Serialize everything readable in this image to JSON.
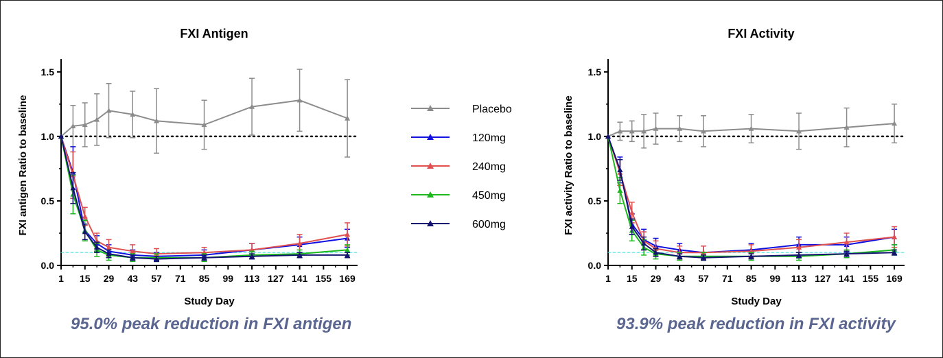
{
  "colors": {
    "placebo": "#8c8c8c",
    "120mg": "#1010e0",
    "240mg": "#e05050",
    "450mg": "#1cb81c",
    "600mg": "#141470",
    "reference_dotted": "#000000",
    "reference_dashed": "#40e0e0",
    "caption": "#5a6590"
  },
  "legend": {
    "entries": [
      {
        "key": "placebo",
        "label": "Placebo"
      },
      {
        "key": "120mg",
        "label": "120mg"
      },
      {
        "key": "240mg",
        "label": "240mg"
      },
      {
        "key": "450mg",
        "label": "450mg"
      },
      {
        "key": "600mg",
        "label": "600mg"
      }
    ]
  },
  "captions": {
    "left": "95.0% peak reduction in FXI antigen",
    "right": "93.9% peak reduction in FXI activity"
  },
  "chart_data": [
    {
      "type": "line",
      "title": "FXI Antigen",
      "xlabel": "Study Day",
      "ylabel": "FXI antigen Ratio to baseline",
      "xlim": [
        1,
        175
      ],
      "ylim": [
        0,
        1.6
      ],
      "xticks": [
        1,
        15,
        29,
        43,
        57,
        71,
        85,
        99,
        113,
        127,
        141,
        155,
        169
      ],
      "yticks": [
        0.0,
        0.5,
        1.0,
        1.5
      ],
      "ytick_labels": [
        "0.0",
        "0.5",
        "1.0",
        "1.5"
      ],
      "reference_lines": [
        {
          "y": 1.0,
          "style": "dotted",
          "color_key": "reference_dotted"
        },
        {
          "y": 0.1,
          "style": "dashed",
          "color_key": "reference_dashed"
        }
      ],
      "series": [
        {
          "name": "Placebo",
          "key": "placebo",
          "x": [
            1,
            8,
            15,
            22,
            29,
            43,
            57,
            85,
            113,
            141,
            169
          ],
          "y": [
            1.0,
            1.08,
            1.09,
            1.13,
            1.2,
            1.17,
            1.12,
            1.09,
            1.23,
            1.28,
            1.14
          ],
          "err": [
            0,
            0.16,
            0.17,
            0.2,
            0.21,
            0.18,
            0.25,
            0.19,
            0.22,
            0.24,
            0.3
          ]
        },
        {
          "name": "120mg",
          "key": "120mg",
          "x": [
            1,
            8,
            15,
            22,
            29,
            43,
            57,
            85,
            113,
            141,
            169
          ],
          "y": [
            1.0,
            0.72,
            0.27,
            0.17,
            0.11,
            0.08,
            0.07,
            0.08,
            0.12,
            0.16,
            0.21
          ],
          "err": [
            0,
            0.2,
            0.08,
            0.06,
            0.05,
            0.04,
            0.03,
            0.04,
            0.05,
            0.06,
            0.07
          ]
        },
        {
          "name": "240mg",
          "key": "240mg",
          "x": [
            1,
            8,
            15,
            22,
            29,
            43,
            57,
            85,
            113,
            141,
            169
          ],
          "y": [
            1.0,
            0.7,
            0.38,
            0.19,
            0.14,
            0.11,
            0.09,
            0.1,
            0.12,
            0.17,
            0.24
          ],
          "err": [
            0,
            0.18,
            0.07,
            0.06,
            0.06,
            0.05,
            0.04,
            0.04,
            0.05,
            0.07,
            0.09
          ]
        },
        {
          "name": "450mg",
          "key": "450mg",
          "x": [
            1,
            8,
            15,
            22,
            29,
            43,
            57,
            85,
            113,
            141,
            169
          ],
          "y": [
            1.0,
            0.55,
            0.27,
            0.12,
            0.08,
            0.06,
            0.06,
            0.06,
            0.08,
            0.09,
            0.12
          ],
          "err": [
            0,
            0.15,
            0.08,
            0.05,
            0.04,
            0.03,
            0.03,
            0.03,
            0.03,
            0.03,
            0.04
          ]
        },
        {
          "name": "600mg",
          "key": "600mg",
          "x": [
            1,
            8,
            15,
            22,
            29,
            43,
            57,
            85,
            113,
            141,
            169
          ],
          "y": [
            1.0,
            0.6,
            0.26,
            0.14,
            0.09,
            0.06,
            0.05,
            0.06,
            0.07,
            0.08,
            0.08
          ],
          "err": [
            0,
            0.12,
            0.06,
            0.04,
            0.03,
            0.02,
            0.02,
            0.02,
            0.02,
            0.02,
            0.02
          ]
        }
      ]
    },
    {
      "type": "line",
      "title": "FXI Activity",
      "xlabel": "Study Day",
      "ylabel": "FXI activity Ratio to baseline",
      "xlim": [
        1,
        175
      ],
      "ylim": [
        0,
        1.6
      ],
      "xticks": [
        1,
        15,
        29,
        43,
        57,
        71,
        85,
        99,
        113,
        127,
        141,
        155,
        169
      ],
      "yticks": [
        0.0,
        0.5,
        1.0,
        1.5
      ],
      "ytick_labels": [
        "0.0",
        "0.5",
        "1.0",
        "1.5"
      ],
      "reference_lines": [
        {
          "y": 1.0,
          "style": "dotted",
          "color_key": "reference_dotted"
        },
        {
          "y": 0.1,
          "style": "dashed",
          "color_key": "reference_dashed"
        }
      ],
      "series": [
        {
          "name": "Placebo",
          "key": "placebo",
          "x": [
            1,
            8,
            15,
            22,
            29,
            43,
            57,
            85,
            113,
            141,
            169
          ],
          "y": [
            1.0,
            1.04,
            1.04,
            1.04,
            1.06,
            1.06,
            1.04,
            1.06,
            1.04,
            1.07,
            1.1
          ],
          "err": [
            0,
            0.07,
            0.08,
            0.13,
            0.12,
            0.1,
            0.12,
            0.11,
            0.14,
            0.15,
            0.15
          ]
        },
        {
          "name": "120mg",
          "key": "120mg",
          "x": [
            1,
            8,
            15,
            22,
            29,
            43,
            57,
            85,
            113,
            141,
            169
          ],
          "y": [
            1.0,
            0.74,
            0.32,
            0.2,
            0.15,
            0.12,
            0.1,
            0.12,
            0.16,
            0.16,
            0.22
          ],
          "err": [
            0,
            0.1,
            0.08,
            0.08,
            0.06,
            0.05,
            0.05,
            0.05,
            0.06,
            0.06,
            0.06
          ]
        },
        {
          "name": "240mg",
          "key": "240mg",
          "x": [
            1,
            8,
            15,
            22,
            29,
            43,
            57,
            85,
            113,
            141,
            169
          ],
          "y": [
            1.0,
            0.72,
            0.41,
            0.19,
            0.13,
            0.1,
            0.1,
            0.11,
            0.14,
            0.18,
            0.22
          ],
          "err": [
            0,
            0.1,
            0.08,
            0.07,
            0.06,
            0.05,
            0.05,
            0.05,
            0.06,
            0.07,
            0.08
          ]
        },
        {
          "name": "450mg",
          "key": "450mg",
          "x": [
            1,
            8,
            15,
            22,
            29,
            43,
            57,
            85,
            113,
            141,
            169
          ],
          "y": [
            1.0,
            0.58,
            0.27,
            0.14,
            0.09,
            0.07,
            0.07,
            0.07,
            0.07,
            0.09,
            0.12
          ],
          "err": [
            0,
            0.1,
            0.08,
            0.06,
            0.04,
            0.03,
            0.03,
            0.03,
            0.03,
            0.03,
            0.04
          ]
        },
        {
          "name": "600mg",
          "key": "600mg",
          "x": [
            1,
            8,
            15,
            22,
            29,
            43,
            57,
            85,
            113,
            141,
            169
          ],
          "y": [
            1.0,
            0.74,
            0.3,
            0.17,
            0.1,
            0.07,
            0.06,
            0.07,
            0.08,
            0.09,
            0.1
          ],
          "err": [
            0,
            0.08,
            0.06,
            0.05,
            0.03,
            0.02,
            0.02,
            0.02,
            0.02,
            0.02,
            0.02
          ]
        }
      ]
    }
  ]
}
